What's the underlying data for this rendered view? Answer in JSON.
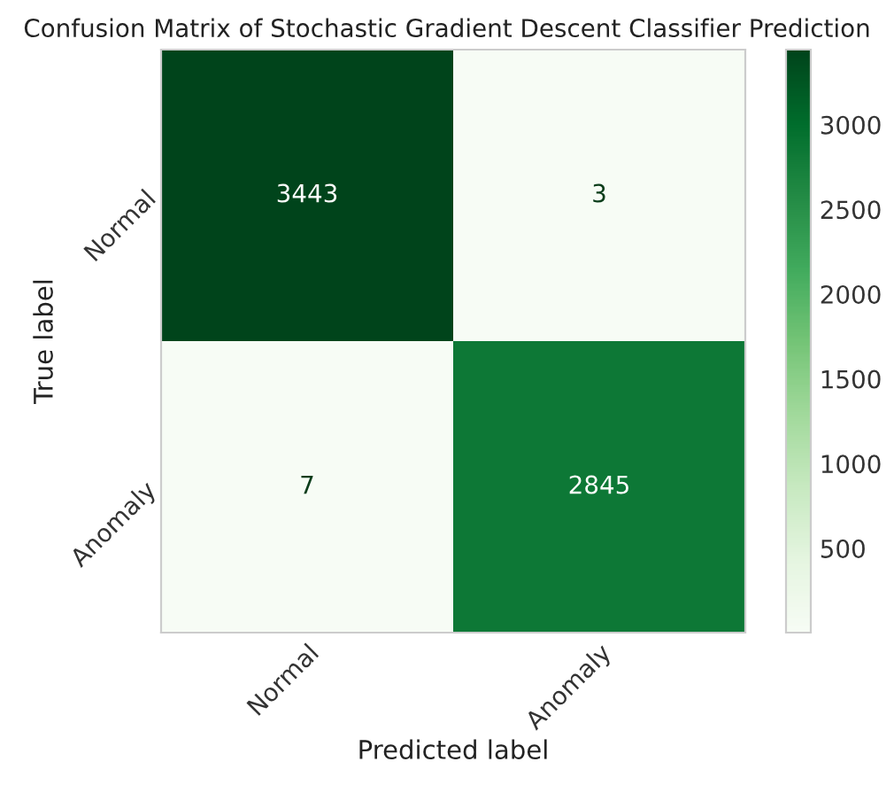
{
  "chart_data": {
    "type": "heatmap",
    "title": "Confusion Matrix of Stochastic Gradient Descent Classifier Prediction",
    "xlabel": "Predicted label",
    "ylabel": "True label",
    "categories": [
      "Normal",
      "Anomaly"
    ],
    "y_categories": [
      "Normal",
      "Anomaly"
    ],
    "cells": [
      [
        3443,
        3
      ],
      [
        7,
        2845
      ]
    ],
    "data_labels": true,
    "clim": [
      3,
      3443
    ],
    "cticks": [
      500,
      1000,
      1500,
      2000,
      2500,
      3000
    ],
    "grid": false
  }
}
